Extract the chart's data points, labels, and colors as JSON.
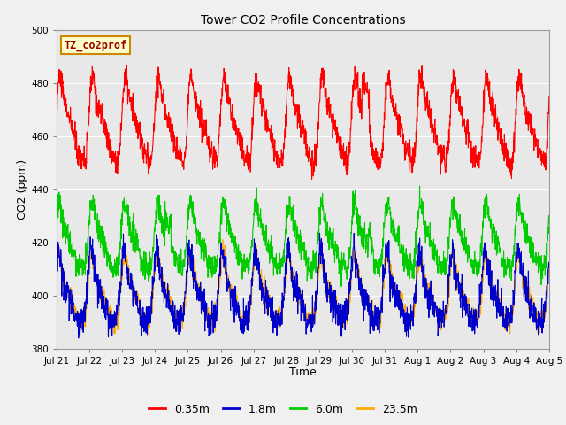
{
  "title": "Tower CO2 Profile Concentrations",
  "xlabel": "Time",
  "ylabel": "CO2 (ppm)",
  "ylim": [
    380,
    500
  ],
  "tick_labels": [
    "Jul 21",
    "Jul 22",
    "Jul 23",
    "Jul 24",
    "Jul 25",
    "Jul 26",
    "Jul 27",
    "Jul 28",
    "Jul 29",
    "Jul 30",
    "Jul 31",
    "Aug 1",
    "Aug 2",
    "Aug 3",
    "Aug 4",
    "Aug 5"
  ],
  "colors": {
    "0.35m": "#ff0000",
    "1.8m": "#0000cc",
    "6.0m": "#00cc00",
    "23.5m": "#ffaa00"
  },
  "legend_label": "TZ_co2prof",
  "legend_box_color": "#ffffcc",
  "legend_box_edge": "#cc8800",
  "background_color": "#e8e8e8",
  "grid_color": "#ffffff",
  "line_width": 0.8,
  "fig_bg": "#f0f0f0"
}
